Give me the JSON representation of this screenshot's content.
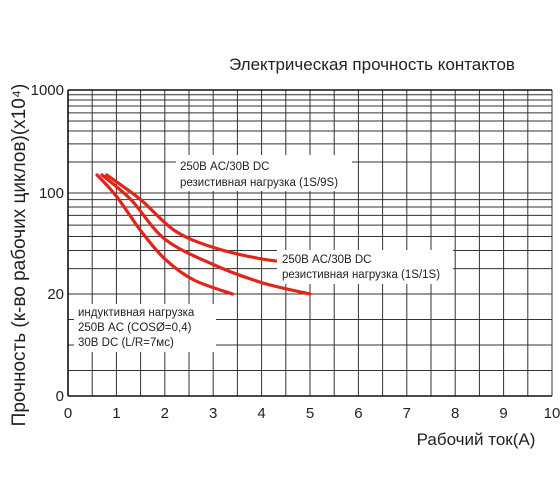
{
  "chart_data": {
    "type": "line",
    "title": "Электрическая прочность контактов",
    "xlabel": "Рабочий ток(А)",
    "ylabel": "Прочность (к-во рабочих циклов)(x10⁴)",
    "x_ticks": [
      "0",
      "1",
      "2",
      "3",
      "4",
      "5",
      "6",
      "7",
      "8",
      "9",
      "10"
    ],
    "y_ticks": [
      {
        "value": 0,
        "label": "0"
      },
      {
        "value": 20,
        "label": "20"
      },
      {
        "value": 100,
        "label": "100"
      },
      {
        "value": 1000,
        "label": "1000"
      }
    ],
    "xlim": [
      0,
      10
    ],
    "grid": true,
    "line_color": "#e1251b",
    "series": [
      {
        "x": [
          0.8,
          1.5,
          2.2,
          3.0,
          4.0,
          5.0
        ],
        "y": [
          150,
          90,
          55,
          42,
          35,
          32
        ]
      },
      {
        "x": [
          0.7,
          1.3,
          2.0,
          3.0,
          4.0,
          5.0
        ],
        "y": [
          150,
          90,
          48,
          32,
          24,
          20
        ]
      },
      {
        "x": [
          0.6,
          1.0,
          1.5,
          2.0,
          2.6,
          3.4
        ],
        "y": [
          150,
          95,
          55,
          35,
          25,
          20
        ]
      }
    ],
    "annotations": [
      {
        "lines": [
          "250В AC/30В DC",
          "резистивная нагрузка (1S/9S)"
        ]
      },
      {
        "lines": [
          "250В AC/30В DC",
          "резистивная нагрузка (1S/1S)"
        ]
      },
      {
        "lines": [
          "индуктивная нагрузка",
          "250В AC (COSØ=0,4)",
          "30В DC (L/R=7мс)"
        ]
      }
    ]
  }
}
